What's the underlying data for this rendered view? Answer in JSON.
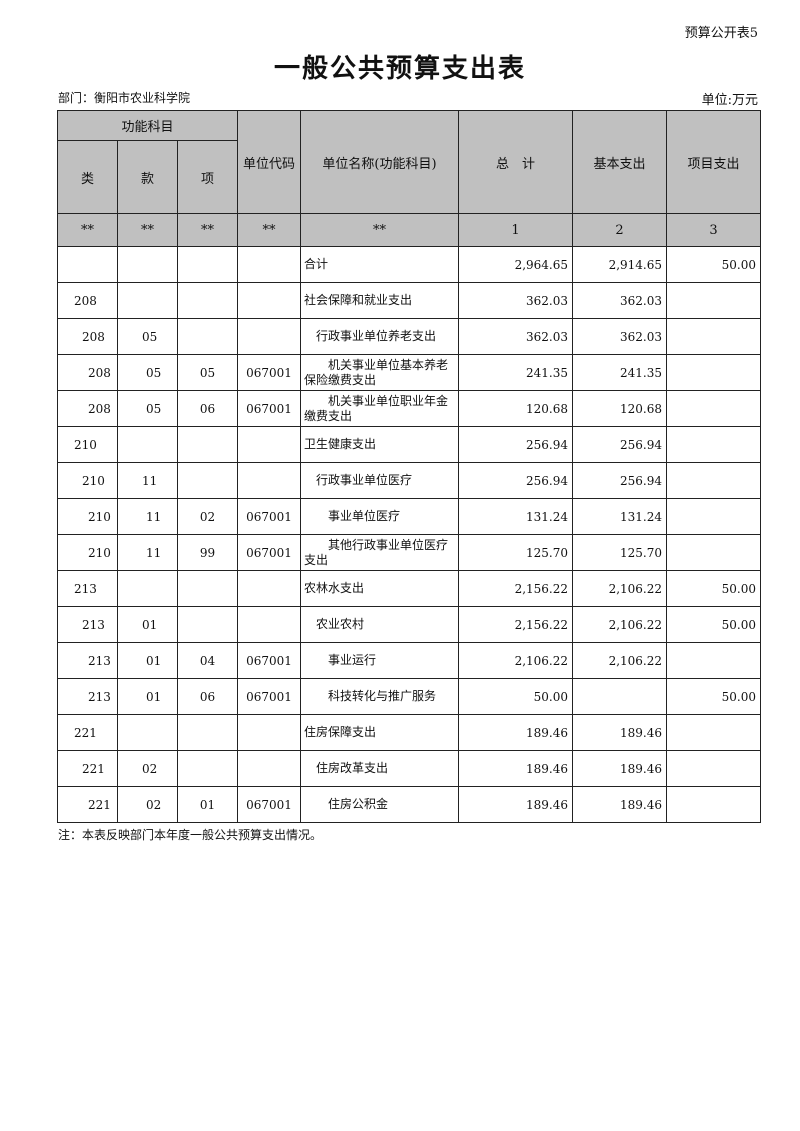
{
  "form_no": "预算公开表5",
  "title": "一般公共预算支出表",
  "department": "部门：衡阳市农业科学院",
  "unit": "单位:万元",
  "headers": {
    "group": "功能科目",
    "lei": "类",
    "kuan": "款",
    "xiang": "项",
    "code": "单位代码",
    "name": "单位名称(功能科目)",
    "total": "总　计",
    "basic": "基本支出",
    "project": "项目支出"
  },
  "index_row": [
    "**",
    "**",
    "**",
    "**",
    "**",
    "1",
    "2",
    "3"
  ],
  "rows": [
    {
      "lei": "",
      "kuan": "",
      "xiang": "",
      "code": "",
      "name": "合计",
      "total": "2,964.65",
      "basic": "2,914.65",
      "project": "50.00",
      "level": 0
    },
    {
      "lei": "208",
      "kuan": "",
      "xiang": "",
      "code": "",
      "name": "社会保障和就业支出",
      "total": "362.03",
      "basic": "362.03",
      "project": "",
      "level": 1
    },
    {
      "lei": "208",
      "kuan": "05",
      "xiang": "",
      "code": "",
      "name": "行政事业单位养老支出",
      "total": "362.03",
      "basic": "362.03",
      "project": "",
      "level": 2
    },
    {
      "lei": "208",
      "kuan": "05",
      "xiang": "05",
      "code": "067001",
      "name": "机关事业单位基本养老保险缴费支出",
      "total": "241.35",
      "basic": "241.35",
      "project": "",
      "level": 3
    },
    {
      "lei": "208",
      "kuan": "05",
      "xiang": "06",
      "code": "067001",
      "name": "机关事业单位职业年金缴费支出",
      "total": "120.68",
      "basic": "120.68",
      "project": "",
      "level": 3
    },
    {
      "lei": "210",
      "kuan": "",
      "xiang": "",
      "code": "",
      "name": "卫生健康支出",
      "total": "256.94",
      "basic": "256.94",
      "project": "",
      "level": 1
    },
    {
      "lei": "210",
      "kuan": "11",
      "xiang": "",
      "code": "",
      "name": "行政事业单位医疗",
      "total": "256.94",
      "basic": "256.94",
      "project": "",
      "level": 2
    },
    {
      "lei": "210",
      "kuan": "11",
      "xiang": "02",
      "code": "067001",
      "name": "事业单位医疗",
      "total": "131.24",
      "basic": "131.24",
      "project": "",
      "level": 3
    },
    {
      "lei": "210",
      "kuan": "11",
      "xiang": "99",
      "code": "067001",
      "name": "其他行政事业单位医疗支出",
      "total": "125.70",
      "basic": "125.70",
      "project": "",
      "level": 3
    },
    {
      "lei": "213",
      "kuan": "",
      "xiang": "",
      "code": "",
      "name": "农林水支出",
      "total": "2,156.22",
      "basic": "2,106.22",
      "project": "50.00",
      "level": 1
    },
    {
      "lei": "213",
      "kuan": "01",
      "xiang": "",
      "code": "",
      "name": "农业农村",
      "total": "2,156.22",
      "basic": "2,106.22",
      "project": "50.00",
      "level": 2
    },
    {
      "lei": "213",
      "kuan": "01",
      "xiang": "04",
      "code": "067001",
      "name": "事业运行",
      "total": "2,106.22",
      "basic": "2,106.22",
      "project": "",
      "level": 3
    },
    {
      "lei": "213",
      "kuan": "01",
      "xiang": "06",
      "code": "067001",
      "name": "科技转化与推广服务",
      "total": "50.00",
      "basic": "",
      "project": "50.00",
      "level": 3
    },
    {
      "lei": "221",
      "kuan": "",
      "xiang": "",
      "code": "",
      "name": "住房保障支出",
      "total": "189.46",
      "basic": "189.46",
      "project": "",
      "level": 1
    },
    {
      "lei": "221",
      "kuan": "02",
      "xiang": "",
      "code": "",
      "name": "住房改革支出",
      "total": "189.46",
      "basic": "189.46",
      "project": "",
      "level": 2
    },
    {
      "lei": "221",
      "kuan": "02",
      "xiang": "01",
      "code": "067001",
      "name": "住房公积金",
      "total": "189.46",
      "basic": "189.46",
      "project": "",
      "level": 3
    }
  ],
  "note": "注：本表反映部门本年度一般公共预算支出情况。",
  "colors": {
    "header_bg": "#c0c0c0",
    "border": "#222222"
  }
}
